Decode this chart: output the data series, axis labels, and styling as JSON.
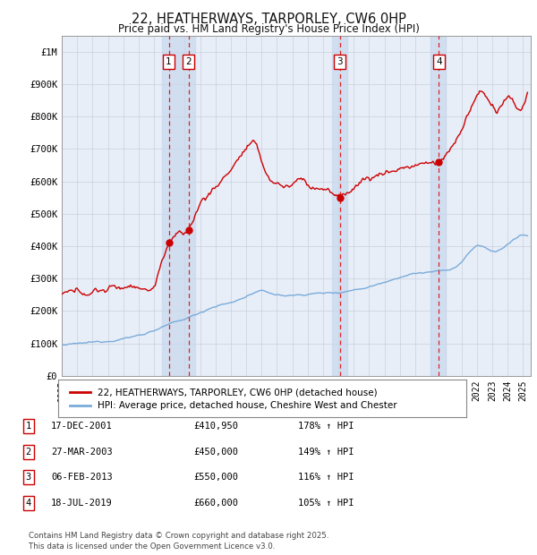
{
  "title": "22, HEATHERWAYS, TARPORLEY, CW6 0HP",
  "subtitle": "Price paid vs. HM Land Registry's House Price Index (HPI)",
  "ylabel_ticks": [
    "£0",
    "£100K",
    "£200K",
    "£300K",
    "£400K",
    "£500K",
    "£600K",
    "£700K",
    "£800K",
    "£900K",
    "£1M"
  ],
  "ytick_values": [
    0,
    100000,
    200000,
    300000,
    400000,
    500000,
    600000,
    700000,
    800000,
    900000,
    1000000
  ],
  "xlim_start": 1995.0,
  "xlim_end": 2025.5,
  "ylim": [
    0,
    1050000
  ],
  "background_color": "#ffffff",
  "plot_bg_color": "#e8eef8",
  "grid_color": "#c8d0dc",
  "hpi_color": "#7aabda",
  "house_color": "#cc0000",
  "transaction_line_color": "#dd2222",
  "span_color": "#c8d8ee",
  "sale_points": [
    {
      "num": 1,
      "year": 2001.96,
      "price": 410950,
      "label": "1"
    },
    {
      "num": 2,
      "year": 2003.24,
      "price": 450000,
      "label": "2"
    },
    {
      "num": 3,
      "year": 2013.09,
      "price": 550000,
      "label": "3"
    },
    {
      "num": 4,
      "year": 2019.54,
      "price": 660000,
      "label": "4"
    }
  ],
  "legend_house": "22, HEATHERWAYS, TARPORLEY, CW6 0HP (detached house)",
  "legend_hpi": "HPI: Average price, detached house, Cheshire West and Chester",
  "table_rows": [
    {
      "num": "1",
      "date": "17-DEC-2001",
      "price": "£410,950",
      "hpi": "178% ↑ HPI"
    },
    {
      "num": "2",
      "date": "27-MAR-2003",
      "price": "£450,000",
      "hpi": "149% ↑ HPI"
    },
    {
      "num": "3",
      "date": "06-FEB-2013",
      "price": "£550,000",
      "hpi": "116% ↑ HPI"
    },
    {
      "num": "4",
      "date": "18-JUL-2019",
      "price": "£660,000",
      "hpi": "105% ↑ HPI"
    }
  ],
  "footer": "Contains HM Land Registry data © Crown copyright and database right 2025.\nThis data is licensed under the Open Government Licence v3.0."
}
